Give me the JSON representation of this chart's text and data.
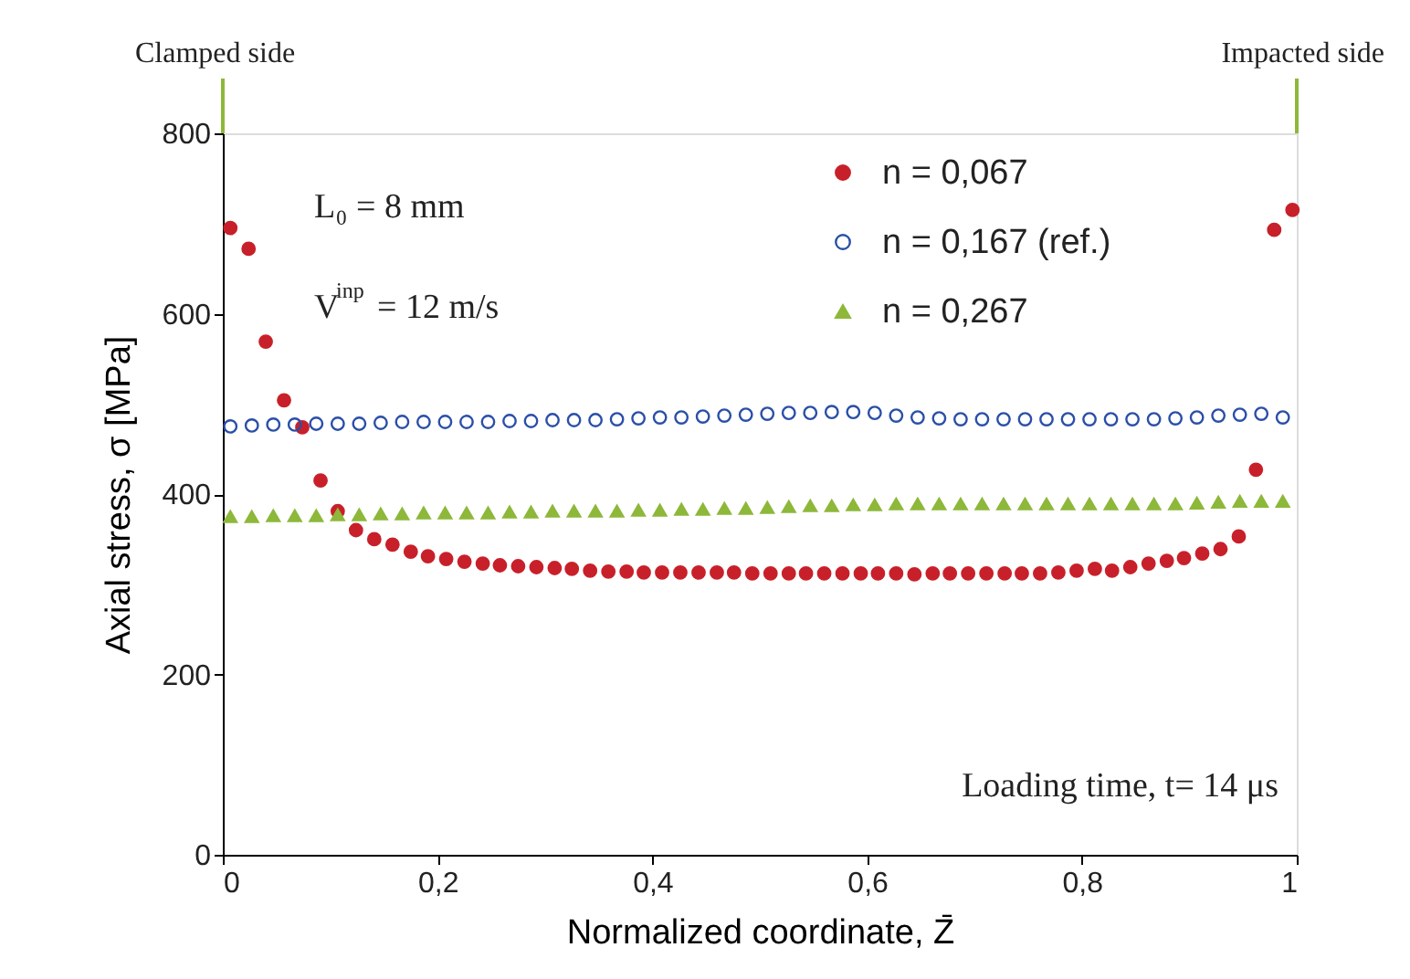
{
  "chart_data": {
    "type": "scatter",
    "xlabel": "Normalized coordinate, Z̄",
    "ylabel": "Axial stress, σ [MPa]",
    "xlim": [
      0,
      1
    ],
    "ylim": [
      0,
      800
    ],
    "xticks": [
      0,
      {
        "value": 0.2,
        "label": "0,2"
      },
      {
        "value": 0.4,
        "label": "0,4"
      },
      {
        "value": 0.6,
        "label": "0,6"
      },
      {
        "value": 0.8,
        "label": "0,8"
      },
      1
    ],
    "yticks": [
      0,
      200,
      400,
      600,
      800
    ],
    "grid": false,
    "legend": "top right",
    "series": [
      {
        "name": "n = 0,067",
        "color": "#c8202a",
        "marker": "circle",
        "x": [
          0.007,
          0.024,
          0.04,
          0.057,
          0.074,
          0.091,
          0.107,
          0.124,
          0.141,
          0.158,
          0.175,
          0.191,
          0.208,
          0.225,
          0.242,
          0.258,
          0.275,
          0.292,
          0.309,
          0.325,
          0.342,
          0.359,
          0.376,
          0.392,
          0.409,
          0.426,
          0.443,
          0.46,
          0.476,
          0.493,
          0.51,
          0.527,
          0.543,
          0.56,
          0.577,
          0.594,
          0.61,
          0.627,
          0.644,
          0.661,
          0.677,
          0.694,
          0.711,
          0.728,
          0.744,
          0.761,
          0.778,
          0.795,
          0.812,
          0.828,
          0.845,
          0.862,
          0.879,
          0.895,
          0.912,
          0.929,
          0.946,
          0.962,
          0.979,
          0.996
        ],
        "values": [
          695,
          672,
          569,
          504,
          474,
          415,
          381,
          360,
          350,
          344,
          336,
          331,
          328,
          325,
          323,
          321,
          320,
          319,
          318,
          317,
          315,
          314,
          314,
          313,
          313,
          313,
          313,
          313,
          313,
          312,
          312,
          312,
          312,
          312,
          312,
          312,
          312,
          312,
          311,
          312,
          312,
          312,
          312,
          312,
          312,
          312,
          313,
          315,
          317,
          315,
          319,
          323,
          326,
          329,
          334,
          339,
          353,
          427,
          693,
          715
        ]
      },
      {
        "name": "n = 0,167 (ref.)",
        "color": "#2a4fa8",
        "marker": "open_circle",
        "x": [
          0.007,
          0.027,
          0.047,
          0.067,
          0.087,
          0.107,
          0.127,
          0.147,
          0.167,
          0.187,
          0.207,
          0.227,
          0.247,
          0.267,
          0.287,
          0.307,
          0.327,
          0.347,
          0.367,
          0.387,
          0.407,
          0.427,
          0.447,
          0.467,
          0.487,
          0.507,
          0.527,
          0.547,
          0.567,
          0.587,
          0.607,
          0.627,
          0.647,
          0.667,
          0.687,
          0.707,
          0.727,
          0.747,
          0.767,
          0.787,
          0.807,
          0.827,
          0.847,
          0.867,
          0.887,
          0.907,
          0.927,
          0.947,
          0.967,
          0.987
        ],
        "values": [
          475,
          476,
          477,
          477,
          478,
          478,
          478,
          479,
          480,
          480,
          480,
          480,
          480,
          481,
          481,
          482,
          482,
          482,
          483,
          484,
          485,
          485,
          486,
          487,
          488,
          489,
          490,
          490,
          491,
          491,
          490,
          487,
          485,
          484,
          483,
          483,
          483,
          483,
          483,
          483,
          483,
          483,
          483,
          483,
          484,
          485,
          487,
          488,
          489,
          485
        ]
      },
      {
        "name": "n = 0,267",
        "color": "#8db83a",
        "marker": "triangle",
        "x": [
          0.007,
          0.027,
          0.047,
          0.067,
          0.087,
          0.107,
          0.127,
          0.147,
          0.167,
          0.187,
          0.207,
          0.227,
          0.247,
          0.267,
          0.287,
          0.307,
          0.327,
          0.347,
          0.367,
          0.387,
          0.407,
          0.427,
          0.447,
          0.467,
          0.487,
          0.507,
          0.527,
          0.547,
          0.567,
          0.587,
          0.607,
          0.627,
          0.647,
          0.667,
          0.687,
          0.707,
          0.727,
          0.747,
          0.767,
          0.787,
          0.807,
          0.827,
          0.847,
          0.867,
          0.887,
          0.907,
          0.927,
          0.947,
          0.967,
          0.987
        ],
        "values": [
          375,
          375,
          376,
          376,
          376,
          377,
          377,
          378,
          378,
          379,
          379,
          379,
          379,
          380,
          380,
          381,
          381,
          381,
          381,
          382,
          382,
          383,
          383,
          384,
          384,
          385,
          386,
          387,
          387,
          388,
          388,
          389,
          389,
          389,
          389,
          389,
          389,
          389,
          389,
          389,
          389,
          389,
          389,
          389,
          389,
          390,
          391,
          392,
          392,
          392
        ]
      }
    ],
    "annotations": [
      "Clamped side",
      "Impacted side",
      "L₀ = 8 mm",
      "V$^{inp}$ = 12 m/s",
      "Loading time, t= 14 μs"
    ]
  }
}
